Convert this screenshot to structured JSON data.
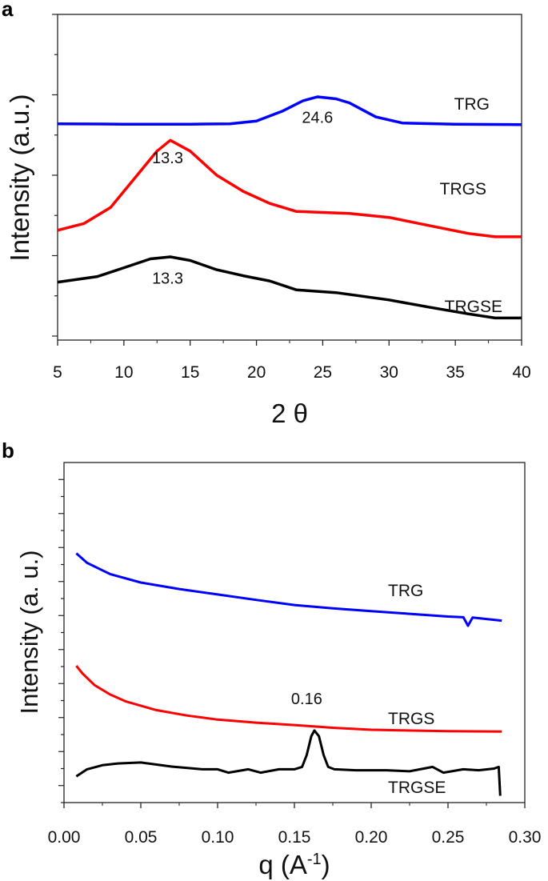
{
  "chart_data": [
    {
      "type": "line",
      "panel_label": "a",
      "xlabel": "2 θ",
      "ylabel": "Intensity (a.u.)",
      "xlim": [
        5,
        40
      ],
      "ylim": [
        -0.1,
        8
      ],
      "x_ticks": [
        "5",
        "10",
        "15",
        "20",
        "25",
        "30",
        "35",
        "40"
      ],
      "y_tick_labels": false,
      "grid": false,
      "series": [
        {
          "name": "TRG",
          "color": "#0000ff",
          "x": [
            5,
            10,
            15,
            18,
            20,
            22,
            23.5,
            24.6,
            26,
            27,
            29,
            31,
            35,
            40
          ],
          "y": [
            5.28,
            5.27,
            5.27,
            5.28,
            5.35,
            5.6,
            5.85,
            5.95,
            5.9,
            5.8,
            5.45,
            5.3,
            5.27,
            5.26
          ]
        },
        {
          "name": "TRGS",
          "color": "#ff0000",
          "x": [
            5,
            7,
            9,
            11,
            12.5,
            13.5,
            15,
            17,
            19,
            21,
            23,
            27,
            30,
            33,
            36,
            38,
            40
          ],
          "y": [
            2.63,
            2.8,
            3.2,
            4.0,
            4.6,
            4.87,
            4.6,
            4.0,
            3.6,
            3.3,
            3.1,
            3.05,
            2.95,
            2.75,
            2.55,
            2.47,
            2.47
          ]
        },
        {
          "name": "TRGSE",
          "color": "#000000",
          "x": [
            5,
            8,
            10,
            12,
            13.5,
            15,
            17,
            19,
            21,
            23,
            26,
            30,
            33,
            36,
            38,
            40
          ],
          "y": [
            1.34,
            1.48,
            1.7,
            1.92,
            1.97,
            1.88,
            1.65,
            1.5,
            1.37,
            1.15,
            1.08,
            0.9,
            0.72,
            0.55,
            0.45,
            0.45
          ]
        }
      ],
      "annotations": [
        {
          "text": "24.6",
          "x": 24.6,
          "y": 5.3
        },
        {
          "text": "13.3",
          "x": 13.3,
          "y": 4.3
        },
        {
          "text": "13.3",
          "x": 13.3,
          "y": 1.3
        }
      ]
    },
    {
      "type": "line",
      "panel_label": "b",
      "xlabel": "q (A",
      "xlabel_superscript": "-1",
      "xlabel_suffix": ")",
      "ylabel": "Intensity (a. u.)",
      "xlim": [
        0,
        0.3
      ],
      "ylim": [
        0,
        10
      ],
      "x_ticks": [
        "0.00",
        "0.05",
        "0.10",
        "0.15",
        "0.20",
        "0.25",
        "0.30"
      ],
      "y_tick_labels": false,
      "grid": false,
      "series": [
        {
          "name": "TRG",
          "color": "#0000ff",
          "x": [
            0.008,
            0.015,
            0.03,
            0.05,
            0.075,
            0.1,
            0.125,
            0.15,
            0.175,
            0.2,
            0.225,
            0.25,
            0.26,
            0.263,
            0.266,
            0.285
          ],
          "y": [
            7.33,
            7.05,
            6.72,
            6.47,
            6.28,
            6.12,
            5.96,
            5.81,
            5.71,
            5.63,
            5.55,
            5.47,
            5.45,
            5.2,
            5.44,
            5.35
          ]
        },
        {
          "name": "TRGS",
          "color": "#ff0000",
          "x": [
            0.008,
            0.012,
            0.02,
            0.03,
            0.04,
            0.06,
            0.08,
            0.1,
            0.125,
            0.15,
            0.175,
            0.2,
            0.25,
            0.285
          ],
          "y": [
            4.02,
            3.8,
            3.45,
            3.18,
            2.98,
            2.72,
            2.56,
            2.44,
            2.35,
            2.28,
            2.2,
            2.14,
            2.1,
            2.09
          ]
        },
        {
          "name": "TRGSE",
          "color": "#000000",
          "x": [
            0.008,
            0.015,
            0.025,
            0.035,
            0.05,
            0.07,
            0.09,
            0.1,
            0.107,
            0.12,
            0.128,
            0.14,
            0.15,
            0.155,
            0.158,
            0.161,
            0.163,
            0.166,
            0.169,
            0.172,
            0.176,
            0.19,
            0.21,
            0.225,
            0.24,
            0.247,
            0.26,
            0.27,
            0.28,
            0.283,
            0.284
          ],
          "y": [
            0.77,
            0.98,
            1.1,
            1.15,
            1.18,
            1.06,
            0.98,
            0.98,
            0.88,
            0.98,
            0.88,
            0.98,
            0.98,
            1.05,
            1.4,
            1.95,
            2.12,
            1.95,
            1.4,
            1.05,
            0.98,
            0.95,
            0.95,
            0.92,
            1.05,
            0.88,
            0.98,
            0.95,
            1.0,
            1.05,
            0.2
          ]
        }
      ],
      "annotations": [
        {
          "text": "0.16",
          "x": 0.158,
          "y": 2.9
        }
      ]
    }
  ]
}
